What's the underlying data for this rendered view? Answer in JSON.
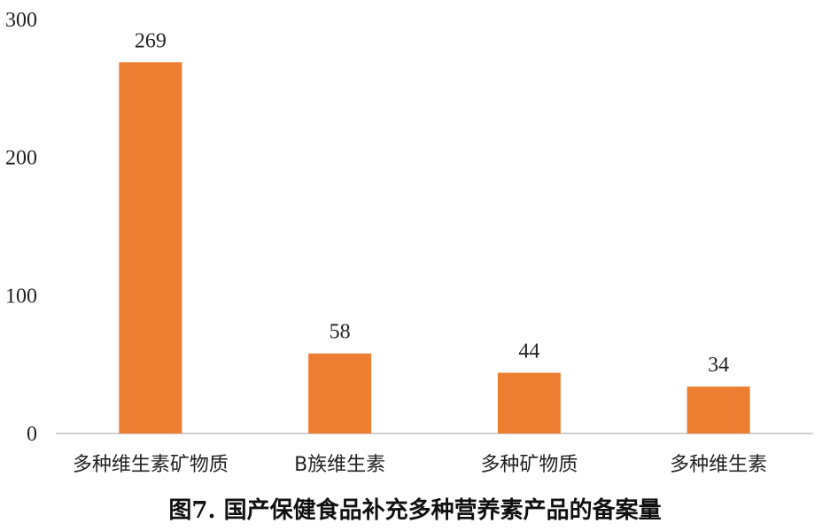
{
  "chart_data": {
    "type": "bar",
    "categories": [
      "多种维生素矿物质",
      "B族维生素",
      "多种矿物质",
      "多种维生素"
    ],
    "values": [
      269,
      58,
      44,
      34
    ],
    "ylim": [
      0,
      300
    ],
    "yticks": [
      0,
      100,
      200,
      300
    ],
    "grid": false,
    "bar_color": "#ED7D31",
    "caption": "图7. 国产保健食品补充多种营养素产品的备案量"
  }
}
